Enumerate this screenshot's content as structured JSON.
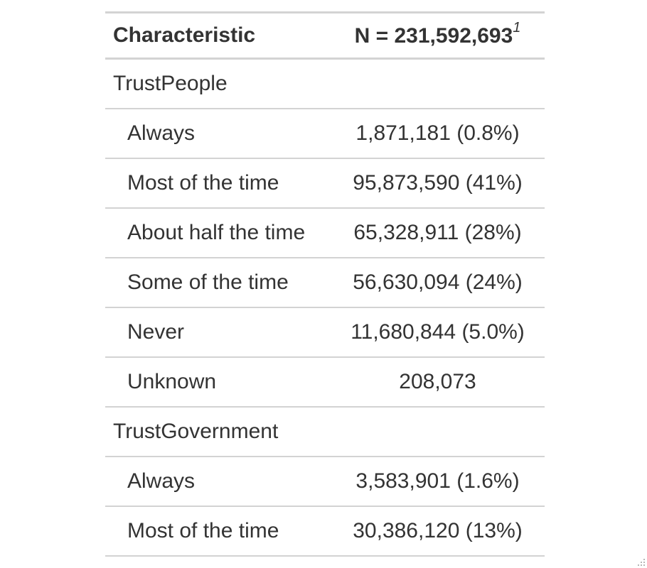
{
  "table": {
    "header": {
      "characteristic": "Characteristic",
      "n_label": "N = 231,592,693",
      "footnote_marker": "1"
    },
    "groups": [
      {
        "label": "TrustPeople",
        "levels": [
          {
            "label": "Always",
            "value": "1,871,181 (0.8%)"
          },
          {
            "label": "Most of the time",
            "value": "95,873,590 (41%)"
          },
          {
            "label": "About half the time",
            "value": "65,328,911 (28%)"
          },
          {
            "label": "Some of the time",
            "value": "56,630,094 (24%)"
          },
          {
            "label": "Never",
            "value": "11,680,844 (5.0%)"
          },
          {
            "label": "Unknown",
            "value": "208,073"
          }
        ]
      },
      {
        "label": "TrustGovernment",
        "levels": [
          {
            "label": "Always",
            "value": "3,583,901 (1.6%)"
          },
          {
            "label": "Most of the time",
            "value": "30,386,120 (13%)"
          }
        ]
      }
    ]
  },
  "icons": {
    "resize_grip": "resize-grip-icon"
  },
  "colors": {
    "text": "#333333",
    "rule": "#d3d3d3",
    "background": "#ffffff"
  }
}
